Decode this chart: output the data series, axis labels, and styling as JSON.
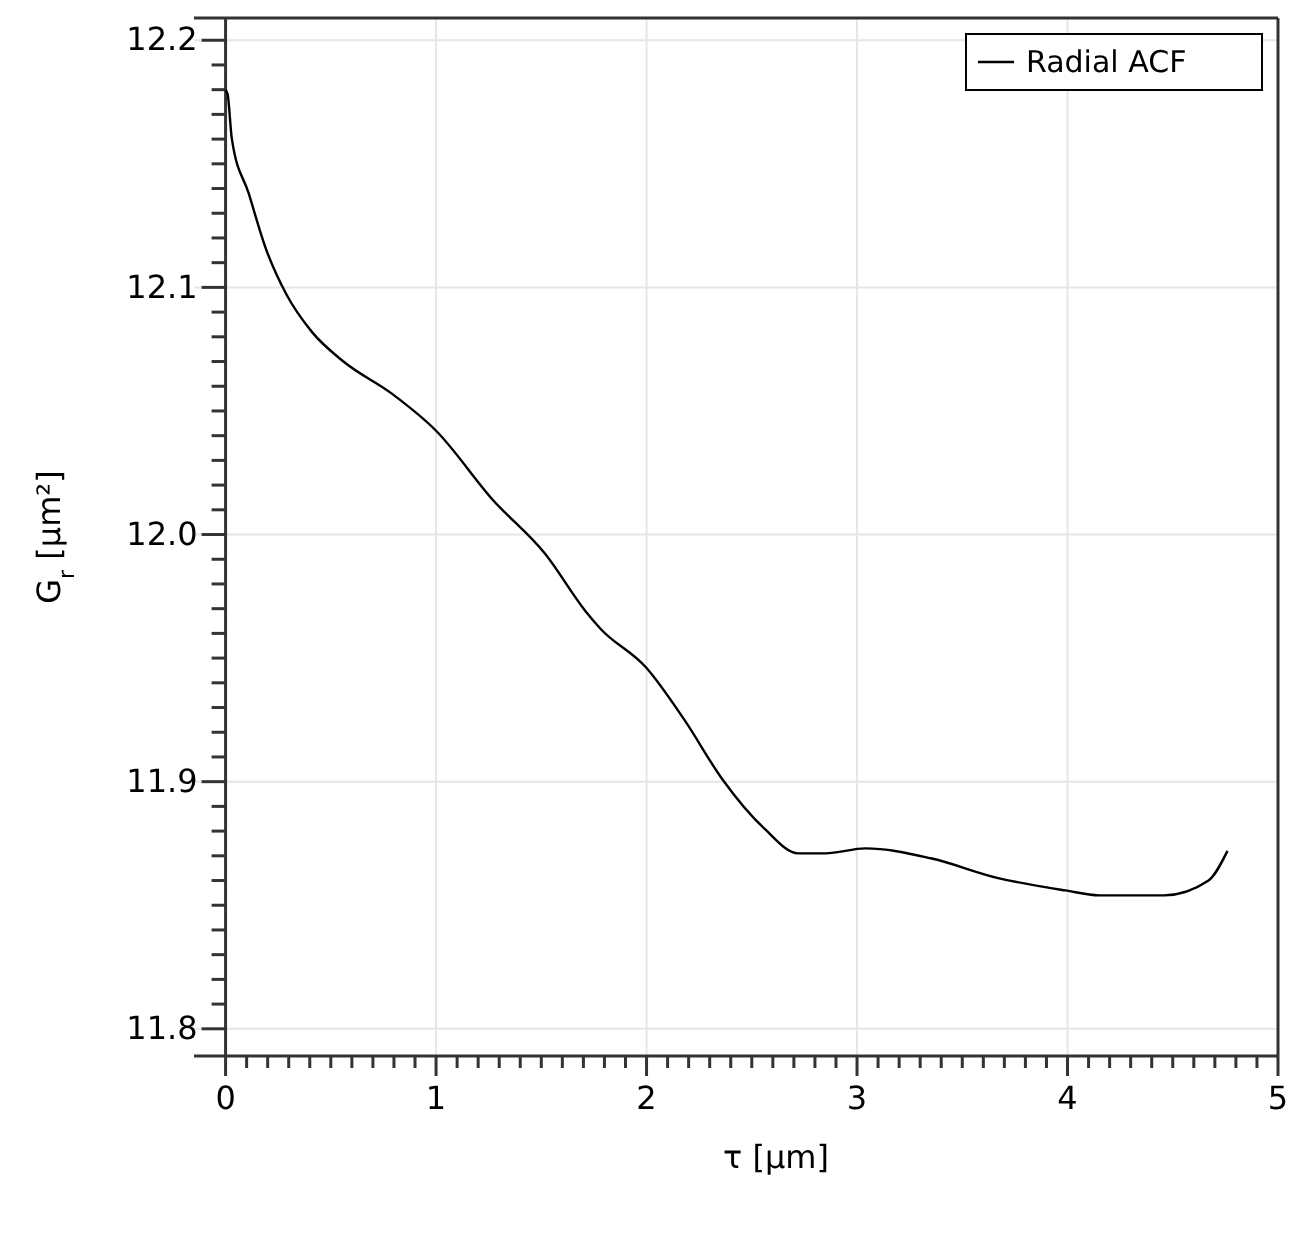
{
  "chart_data": {
    "type": "line",
    "xlabel": "τ [μm]",
    "ylabel": "G$_{r}$ [μm²]",
    "x": [
      0,
      0.01,
      0.03,
      0.11,
      0.19,
      0.29,
      0.41,
      0.56,
      0.79,
      1.0,
      1.27,
      1.52,
      1.71,
      1.78,
      2.0,
      2.18,
      2.36,
      2.56,
      2.72,
      2.85,
      3.04,
      3.35,
      3.67,
      3.99,
      4.15,
      4.46,
      4.67,
      4.76
    ],
    "series": [
      {
        "name": "Radial ACF",
        "color": "#000000",
        "values": [
          12.18,
          12.178,
          12.16,
          12.138,
          12.116,
          12.097,
          12.082,
          12.07,
          12.057,
          12.042,
          12.014,
          11.992,
          11.969,
          11.962,
          11.946,
          11.925,
          11.901,
          11.881,
          11.871,
          11.871,
          11.873,
          11.869,
          11.861,
          11.856,
          11.854,
          11.854,
          11.86,
          11.872
        ]
      }
    ],
    "xlim": [
      -0.15,
      5
    ],
    "ylim": [
      11.789,
      12.209
    ],
    "xticks": [
      0,
      {
        "value": 0.1,
        "label": null
      },
      {
        "value": 0.2,
        "label": null
      },
      {
        "value": 0.3,
        "label": null
      },
      {
        "value": 0.4,
        "label": null
      },
      {
        "value": 0.5,
        "label": null
      },
      {
        "value": 0.6,
        "label": null
      },
      {
        "value": 0.7,
        "label": null
      },
      {
        "value": 0.8,
        "label": null
      },
      {
        "value": 0.9,
        "label": null
      },
      1,
      {
        "value": 1.1,
        "label": null
      },
      {
        "value": 1.2,
        "label": null
      },
      {
        "value": 1.3,
        "label": null
      },
      {
        "value": 1.4,
        "label": null
      },
      {
        "value": 1.5,
        "label": null
      },
      {
        "value": 1.6,
        "label": null
      },
      {
        "value": 1.7,
        "label": null
      },
      {
        "value": 1.8,
        "label": null
      },
      {
        "value": 1.9,
        "label": null
      },
      2,
      {
        "value": 2.1,
        "label": null
      },
      {
        "value": 2.2,
        "label": null
      },
      {
        "value": 2.3,
        "label": null
      },
      {
        "value": 2.4,
        "label": null
      },
      {
        "value": 2.5,
        "label": null
      },
      {
        "value": 2.6,
        "label": null
      },
      {
        "value": 2.7,
        "label": null
      },
      {
        "value": 2.8,
        "label": null
      },
      {
        "value": 2.9,
        "label": null
      },
      3,
      {
        "value": 3.1,
        "label": null
      },
      {
        "value": 3.2,
        "label": null
      },
      {
        "value": 3.3,
        "label": null
      },
      {
        "value": 3.4,
        "label": null
      },
      {
        "value": 3.5,
        "label": null
      },
      {
        "value": 3.6,
        "label": null
      },
      {
        "value": 3.7,
        "label": null
      },
      {
        "value": 3.8,
        "label": null
      },
      {
        "value": 3.9,
        "label": null
      },
      4,
      {
        "value": 4.1,
        "label": null
      },
      {
        "value": 4.2,
        "label": null
      },
      {
        "value": 4.3,
        "label": null
      },
      {
        "value": 4.4,
        "label": null
      },
      {
        "value": 4.5,
        "label": null
      },
      {
        "value": 4.6,
        "label": null
      },
      {
        "value": 4.7,
        "label": null
      },
      {
        "value": 4.8,
        "label": null
      },
      {
        "value": 4.9,
        "label": null
      },
      5
    ],
    "yticks": [
      {
        "value": 11.8,
        "label": "11.8"
      },
      {
        "value": 11.81,
        "label": null
      },
      {
        "value": 11.82,
        "label": null
      },
      {
        "value": 11.83,
        "label": null
      },
      {
        "value": 11.84,
        "label": null
      },
      {
        "value": 11.85,
        "label": null
      },
      {
        "value": 11.86,
        "label": null
      },
      {
        "value": 11.87,
        "label": null
      },
      {
        "value": 11.88,
        "label": null
      },
      {
        "value": 11.89,
        "label": null
      },
      {
        "value": 11.9,
        "label": "11.9"
      },
      {
        "value": 11.91,
        "label": null
      },
      {
        "value": 11.92,
        "label": null
      },
      {
        "value": 11.93,
        "label": null
      },
      {
        "value": 11.94,
        "label": null
      },
      {
        "value": 11.95,
        "label": null
      },
      {
        "value": 11.96,
        "label": null
      },
      {
        "value": 11.97,
        "label": null
      },
      {
        "value": 11.98,
        "label": null
      },
      {
        "value": 11.99,
        "label": null
      },
      {
        "value": 12,
        "label": "12.0"
      },
      {
        "value": 12.01,
        "label": null
      },
      {
        "value": 12.02,
        "label": null
      },
      {
        "value": 12.03,
        "label": null
      },
      {
        "value": 12.04,
        "label": null
      },
      {
        "value": 12.05,
        "label": null
      },
      {
        "value": 12.06,
        "label": null
      },
      {
        "value": 12.07,
        "label": null
      },
      {
        "value": 12.08,
        "label": null
      },
      {
        "value": 12.09,
        "label": null
      },
      {
        "value": 12.1,
        "label": "12.1"
      },
      {
        "value": 12.11,
        "label": null
      },
      {
        "value": 12.12,
        "label": null
      },
      {
        "value": 12.13,
        "label": null
      },
      {
        "value": 12.14,
        "label": null
      },
      {
        "value": 12.15,
        "label": null
      },
      {
        "value": 12.16,
        "label": null
      },
      {
        "value": 12.17,
        "label": null
      },
      {
        "value": 12.18,
        "label": null
      },
      {
        "value": 12.19,
        "label": null
      },
      {
        "value": 12.2,
        "label": "12.2"
      }
    ],
    "grid": true,
    "legend": "top right",
    "marker": "none",
    "line_style": "solid"
  }
}
